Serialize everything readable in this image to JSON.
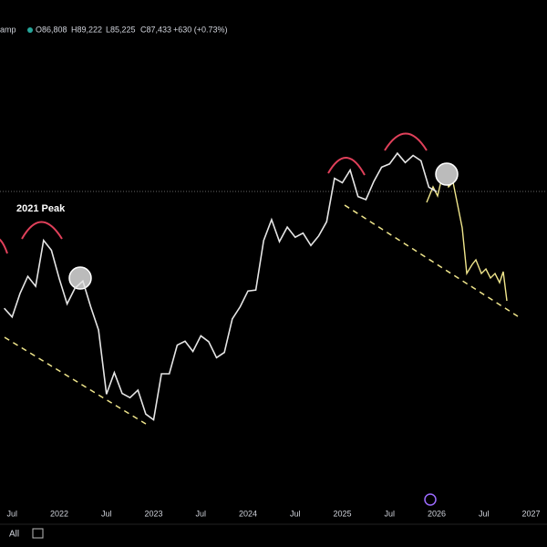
{
  "header": {
    "symbol": "amp",
    "open": "O86,808",
    "high": "H89,222",
    "low": "L85,225",
    "close": "C87,433",
    "change": "+630 (+0.73%)"
  },
  "toolbar": {
    "range": "All"
  },
  "chart_data": {
    "type": "line",
    "annotation": "2021 Peak",
    "log_scale": true,
    "color": "#e6e6e6",
    "x": [
      "2021-05",
      "2021-06",
      "2021-07",
      "2021-08",
      "2021-09",
      "2021-10",
      "2021-11",
      "2021-12",
      "2022-01",
      "2022-02",
      "2022-03",
      "2022-04",
      "2022-05",
      "2022-06",
      "2022-07",
      "2022-08",
      "2022-09",
      "2022-10",
      "2022-11",
      "2022-12",
      "2023-01",
      "2023-02",
      "2023-03",
      "2023-04",
      "2023-05",
      "2023-06",
      "2023-07",
      "2023-08",
      "2023-09",
      "2023-10",
      "2023-11",
      "2023-12",
      "2024-01",
      "2024-02",
      "2024-03",
      "2024-04",
      "2024-05",
      "2024-06",
      "2024-07",
      "2024-08",
      "2024-09",
      "2024-10",
      "2024-11",
      "2024-12",
      "2025-01",
      "2025-02",
      "2025-03",
      "2025-04",
      "2025-05",
      "2025-06",
      "2025-07",
      "2025-08",
      "2025-09",
      "2025-10",
      "2025-11",
      "2025-12"
    ],
    "values": [
      37300,
      35000,
      41500,
      47100,
      43800,
      61300,
      57000,
      46300,
      38500,
      43200,
      45500,
      37700,
      31800,
      19900,
      23300,
      20000,
      19400,
      20500,
      17200,
      16500,
      23100,
      23100,
      28500,
      29300,
      27200,
      30500,
      29200,
      26000,
      27000,
      34500,
      37700,
      42300,
      42600,
      61200,
      71300,
      60700,
      67500,
      62700,
      64600,
      59000,
      63300,
      70200,
      96400,
      93400,
      102400,
      84400,
      82500,
      94200,
      104600,
      107100,
      115800,
      108200,
      114000,
      109600,
      90400,
      87433
    ],
    "ylim": [
      8500,
      272000
    ],
    "xticks": [
      {
        "value": "2021-07",
        "label": "Jul"
      },
      {
        "value": "2022-01",
        "label": "2022"
      },
      {
        "value": "2022-07",
        "label": "Jul"
      },
      {
        "value": "2023-01",
        "label": "2023"
      },
      {
        "value": "2023-07",
        "label": "Jul"
      },
      {
        "value": "2024-01",
        "label": "2024"
      },
      {
        "value": "2024-07",
        "label": "Jul"
      },
      {
        "value": "2025-01",
        "label": "2025"
      },
      {
        "value": "2025-07",
        "label": "Jul"
      },
      {
        "value": "2026-01",
        "label": "2026"
      },
      {
        "value": "2026-07",
        "label": "Jul"
      },
      {
        "value": "2027-01",
        "label": "2027"
      }
    ]
  }
}
